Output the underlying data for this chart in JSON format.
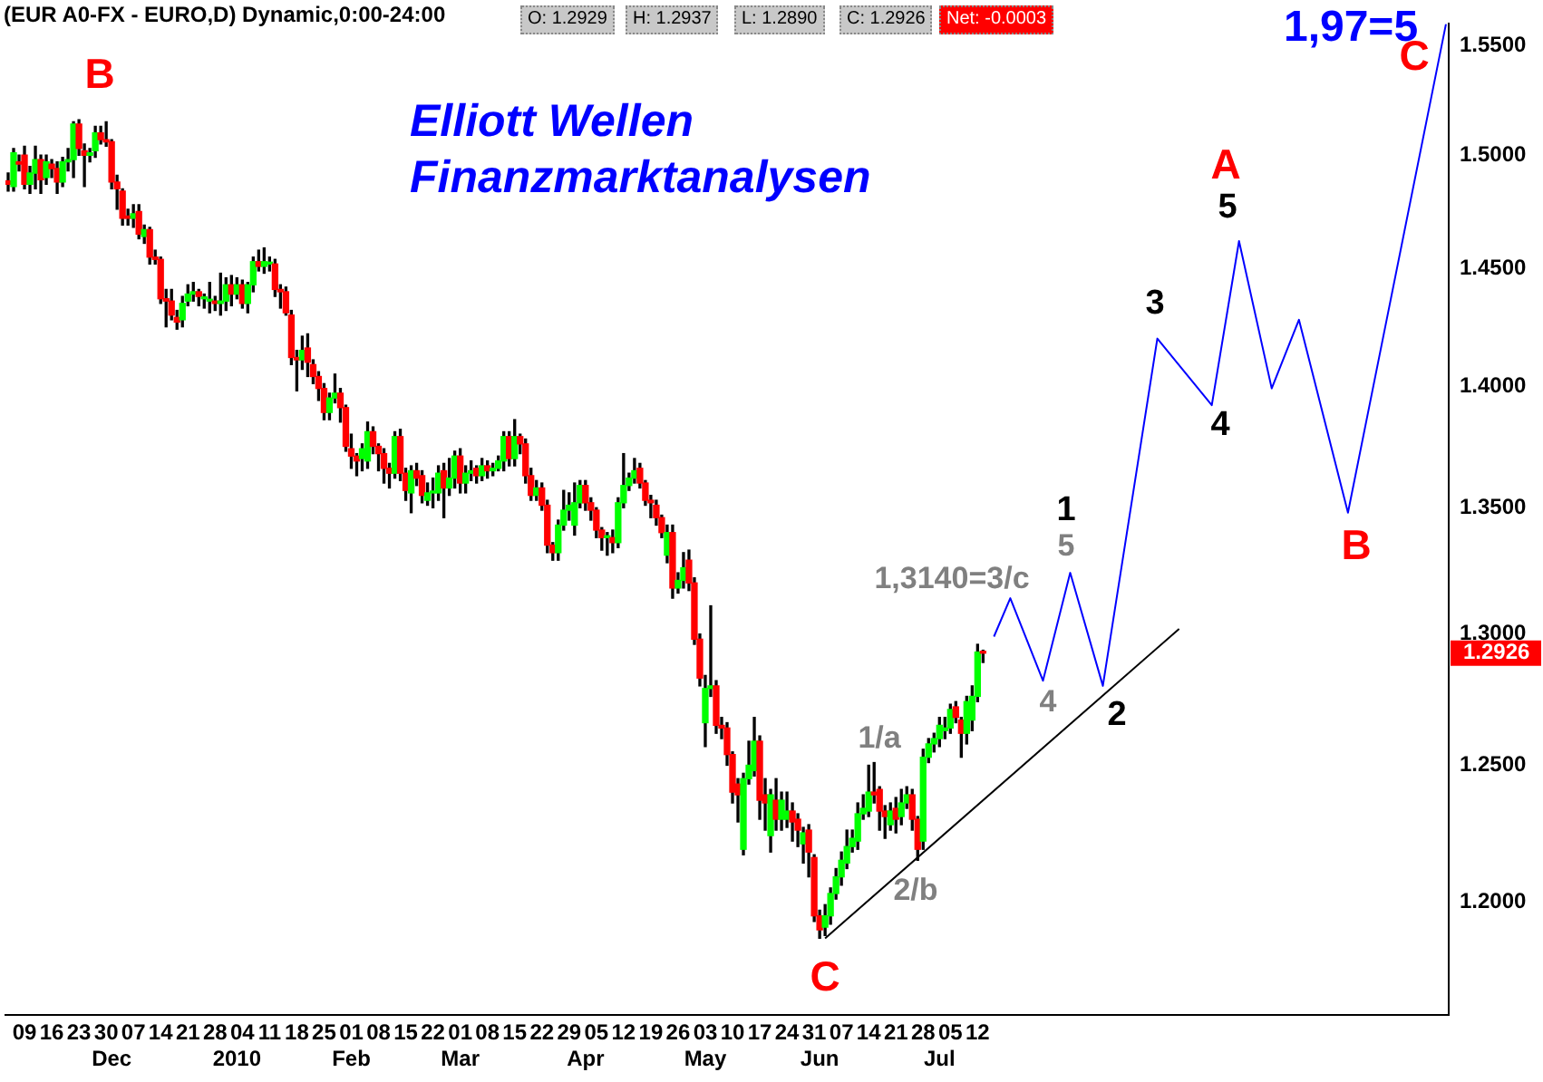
{
  "chart_data": {
    "type": "candlestick",
    "title": "(EUR A0-FX - EURO,D) Dynamic,0:00-24:00",
    "categories": [
      null,
      null,
      null,
      "09",
      null,
      null,
      null,
      null,
      "16",
      null,
      null,
      null,
      null,
      "23",
      null,
      null,
      null,
      null,
      "30",
      "\nDec",
      null,
      null,
      null,
      "07",
      null,
      null,
      null,
      null,
      "14",
      null,
      null,
      null,
      null,
      "21",
      null,
      null,
      null,
      null,
      "28",
      null,
      null,
      null,
      "\n2010",
      "04",
      null,
      null,
      null,
      null,
      "11",
      null,
      null,
      null,
      null,
      "18",
      null,
      null,
      null,
      null,
      "25",
      null,
      null,
      null,
      null,
      "01\nFeb",
      null,
      null,
      null,
      null,
      "08",
      null,
      null,
      null,
      null,
      "15",
      null,
      null,
      null,
      null,
      "22",
      null,
      null,
      null,
      null,
      "01\nMar",
      null,
      null,
      null,
      null,
      "08",
      null,
      null,
      null,
      null,
      "15",
      null,
      null,
      null,
      null,
      "22",
      null,
      null,
      null,
      null,
      "29",
      null,
      null,
      "\nApr",
      null,
      "05",
      null,
      null,
      null,
      null,
      "12",
      null,
      null,
      null,
      null,
      "19",
      null,
      null,
      null,
      null,
      "26",
      null,
      null,
      null,
      null,
      "03\nMay",
      null,
      null,
      null,
      null,
      "10",
      null,
      null,
      null,
      null,
      "17",
      null,
      null,
      null,
      null,
      "24",
      null,
      null,
      null,
      null,
      "31",
      "\nJun",
      null,
      null,
      null,
      "07",
      null,
      null,
      null,
      null,
      "14",
      null,
      null,
      null,
      null,
      "21",
      null,
      null,
      null,
      null,
      "28",
      null,
      null,
      "\nJul",
      null,
      "05",
      null,
      null,
      null,
      null,
      "12",
      null,
      null,
      null,
      null,
      null,
      null,
      null,
      null,
      null,
      null,
      null,
      null,
      null,
      null,
      null,
      null,
      null,
      null,
      null,
      null,
      null,
      null,
      null,
      null,
      null,
      null,
      null,
      null,
      null,
      null,
      null,
      null,
      null,
      null,
      null,
      null,
      null,
      null,
      null,
      null,
      null,
      null,
      null,
      null,
      null,
      null,
      null,
      null,
      null,
      null,
      null,
      null,
      null,
      null,
      null,
      null,
      null,
      null,
      null,
      null,
      null,
      null,
      null,
      null,
      null,
      null,
      null,
      null,
      null,
      null,
      null,
      null,
      null,
      null,
      null,
      null,
      null,
      null,
      null,
      null,
      null,
      null,
      null,
      null,
      null,
      null
    ],
    "ohlc": [
      [
        1.4885,
        1.492,
        1.484,
        1.487
      ],
      [
        1.486,
        1.503,
        1.484,
        1.501
      ],
      [
        1.497,
        1.5,
        1.493,
        1.496
      ],
      [
        1.5,
        1.504,
        1.485,
        1.487
      ],
      [
        1.487,
        1.495,
        1.483,
        1.492
      ],
      [
        1.492,
        1.504,
        1.485,
        1.498
      ],
      [
        1.498,
        1.5,
        1.483,
        1.489
      ],
      [
        1.49,
        1.5,
        1.487,
        1.497
      ],
      [
        1.496,
        1.498,
        1.49,
        1.494
      ],
      [
        1.494,
        1.497,
        1.483,
        1.488
      ],
      [
        1.488,
        1.499,
        1.486,
        1.497
      ],
      [
        1.497,
        1.503,
        1.493,
        1.498
      ],
      [
        1.498,
        1.515,
        1.49,
        1.514
      ],
      [
        1.514,
        1.516,
        1.5,
        1.503
      ],
      [
        1.502,
        1.505,
        1.486,
        1.5
      ],
      [
        1.5,
        1.503,
        1.497,
        1.501
      ],
      [
        1.502,
        1.513,
        1.499,
        1.51
      ],
      [
        1.51,
        1.513,
        1.505,
        1.507
      ],
      [
        1.507,
        1.515,
        1.504,
        1.506
      ],
      [
        1.506,
        1.507,
        1.485,
        1.488
      ],
      [
        1.488,
        1.491,
        1.476,
        1.485
      ],
      [
        1.484,
        1.485,
        1.469,
        1.472
      ],
      [
        1.473,
        1.476,
        1.469,
        1.472
      ],
      [
        1.472,
        1.478,
        1.468,
        1.474
      ],
      [
        1.475,
        1.478,
        1.463,
        1.465
      ],
      [
        1.464,
        1.469,
        1.461,
        1.467
      ],
      [
        1.467,
        1.468,
        1.452,
        1.455
      ],
      [
        1.455,
        1.458,
        1.452,
        1.454
      ],
      [
        1.454,
        1.455,
        1.435,
        1.437
      ],
      [
        1.437,
        1.441,
        1.425,
        1.436
      ],
      [
        1.436,
        1.441,
        1.428,
        1.43
      ],
      [
        1.429,
        1.432,
        1.424,
        1.427
      ],
      [
        1.428,
        1.438,
        1.425,
        1.435
      ],
      [
        1.436,
        1.443,
        1.434,
        1.439
      ],
      [
        1.439,
        1.444,
        1.436,
        1.44
      ],
      [
        1.44,
        1.441,
        1.434,
        1.438
      ],
      [
        1.437,
        1.439,
        1.433,
        1.437
      ],
      [
        1.436,
        1.444,
        1.431,
        1.436
      ],
      [
        1.436,
        1.438,
        1.432,
        1.435
      ],
      [
        1.435,
        1.448,
        1.43,
        1.436
      ],
      [
        1.436,
        1.446,
        1.432,
        1.443
      ],
      [
        1.443,
        1.447,
        1.434,
        1.439
      ],
      [
        1.439,
        1.446,
        1.437,
        1.443
      ],
      [
        1.443,
        1.445,
        1.433,
        1.435
      ],
      [
        1.435,
        1.444,
        1.431,
        1.443
      ],
      [
        1.443,
        1.455,
        1.44,
        1.453
      ],
      [
        1.453,
        1.458,
        1.449,
        1.451
      ],
      [
        1.451,
        1.459,
        1.448,
        1.453
      ],
      [
        1.452,
        1.455,
        1.449,
        1.452
      ],
      [
        1.452,
        1.454,
        1.438,
        1.441
      ],
      [
        1.441,
        1.443,
        1.433,
        1.44
      ],
      [
        1.44,
        1.442,
        1.43,
        1.431
      ],
      [
        1.43,
        1.432,
        1.409,
        1.412
      ],
      [
        1.412,
        1.415,
        1.398,
        1.411
      ],
      [
        1.411,
        1.421,
        1.407,
        1.415
      ],
      [
        1.416,
        1.422,
        1.404,
        1.41
      ],
      [
        1.409,
        1.411,
        1.401,
        1.404
      ],
      [
        1.404,
        1.406,
        1.394,
        1.399
      ],
      [
        1.399,
        1.401,
        1.386,
        1.389
      ],
      [
        1.389,
        1.397,
        1.386,
        1.395
      ],
      [
        1.395,
        1.405,
        1.393,
        1.397
      ],
      [
        1.397,
        1.399,
        1.385,
        1.391
      ],
      [
        1.391,
        1.392,
        1.373,
        1.375
      ],
      [
        1.374,
        1.38,
        1.366,
        1.371
      ],
      [
        1.371,
        1.372,
        1.363,
        1.369
      ],
      [
        1.37,
        1.376,
        1.365,
        1.374
      ],
      [
        1.369,
        1.385,
        1.366,
        1.381
      ],
      [
        1.381,
        1.383,
        1.372,
        1.375
      ],
      [
        1.375,
        1.376,
        1.365,
        1.372
      ],
      [
        1.372,
        1.374,
        1.36,
        1.366
      ],
      [
        1.366,
        1.368,
        1.358,
        1.364
      ],
      [
        1.364,
        1.381,
        1.362,
        1.379
      ],
      [
        1.379,
        1.382,
        1.361,
        1.364
      ],
      [
        1.364,
        1.366,
        1.353,
        1.357
      ],
      [
        1.356,
        1.367,
        1.348,
        1.365
      ],
      [
        1.365,
        1.368,
        1.359,
        1.362
      ],
      [
        1.363,
        1.365,
        1.352,
        1.355
      ],
      [
        1.353,
        1.36,
        1.351,
        1.356
      ],
      [
        1.356,
        1.362,
        1.35,
        1.356
      ],
      [
        1.356,
        1.367,
        1.353,
        1.364
      ],
      [
        1.365,
        1.368,
        1.346,
        1.358
      ],
      [
        1.358,
        1.37,
        1.355,
        1.362
      ],
      [
        1.362,
        1.373,
        1.358,
        1.371
      ],
      [
        1.371,
        1.374,
        1.356,
        1.36
      ],
      [
        1.36,
        1.367,
        1.356,
        1.364
      ],
      [
        1.364,
        1.369,
        1.361,
        1.365
      ],
      [
        1.366,
        1.367,
        1.36,
        1.363
      ],
      [
        1.363,
        1.37,
        1.361,
        1.367
      ],
      [
        1.367,
        1.369,
        1.362,
        1.365
      ],
      [
        1.365,
        1.368,
        1.363,
        1.366
      ],
      [
        1.366,
        1.371,
        1.365,
        1.369
      ],
      [
        1.369,
        1.381,
        1.365,
        1.379
      ],
      [
        1.379,
        1.381,
        1.367,
        1.37
      ],
      [
        1.37,
        1.386,
        1.367,
        1.379
      ],
      [
        1.379,
        1.38,
        1.372,
        1.376
      ],
      [
        1.376,
        1.378,
        1.36,
        1.363
      ],
      [
        1.363,
        1.366,
        1.353,
        1.355
      ],
      [
        1.355,
        1.361,
        1.353,
        1.358
      ],
      [
        1.358,
        1.36,
        1.349,
        1.351
      ],
      [
        1.351,
        1.353,
        1.332,
        1.335
      ],
      [
        1.335,
        1.336,
        1.329,
        1.332
      ],
      [
        1.332,
        1.345,
        1.329,
        1.343
      ],
      [
        1.343,
        1.357,
        1.341,
        1.349
      ],
      [
        1.349,
        1.356,
        1.345,
        1.351
      ],
      [
        1.343,
        1.36,
        1.339,
        1.352
      ],
      [
        1.352,
        1.361,
        1.35,
        1.359
      ],
      [
        1.359,
        1.361,
        1.349,
        1.352
      ],
      [
        1.352,
        1.354,
        1.345,
        1.349
      ],
      [
        1.349,
        1.35,
        1.338,
        1.341
      ],
      [
        1.341,
        1.342,
        1.333,
        1.338
      ],
      [
        1.338,
        1.34,
        1.331,
        1.338
      ],
      [
        1.338,
        1.341,
        1.332,
        1.336
      ],
      [
        1.336,
        1.354,
        1.334,
        1.352
      ],
      [
        1.352,
        1.372,
        1.35,
        1.359
      ],
      [
        1.359,
        1.364,
        1.357,
        1.362
      ],
      [
        1.362,
        1.37,
        1.36,
        1.365
      ],
      [
        1.366,
        1.368,
        1.358,
        1.36
      ],
      [
        1.36,
        1.361,
        1.351,
        1.353
      ],
      [
        1.353,
        1.355,
        1.346,
        1.352
      ],
      [
        1.351,
        1.353,
        1.343,
        1.346
      ],
      [
        1.346,
        1.347,
        1.338,
        1.34
      ],
      [
        1.331,
        1.343,
        1.328,
        1.34
      ],
      [
        1.34,
        1.343,
        1.314,
        1.318
      ],
      [
        1.318,
        1.324,
        1.316,
        1.321
      ],
      [
        1.321,
        1.332,
        1.318,
        1.326
      ],
      [
        1.329,
        1.333,
        1.317,
        1.32
      ],
      [
        1.32,
        1.322,
        1.296,
        1.298
      ],
      [
        1.298,
        1.3,
        1.28,
        1.283
      ],
      [
        1.266,
        1.284,
        1.257,
        1.279
      ],
      [
        1.279,
        1.311,
        1.276,
        1.28
      ],
      [
        1.28,
        1.282,
        1.262,
        1.265
      ],
      [
        1.265,
        1.268,
        1.26,
        1.264
      ],
      [
        1.264,
        1.266,
        1.25,
        1.254
      ],
      [
        1.254,
        1.255,
        1.236,
        1.24
      ],
      [
        1.243,
        1.245,
        1.229,
        1.239
      ],
      [
        1.219,
        1.247,
        1.217,
        1.245
      ],
      [
        1.245,
        1.259,
        1.243,
        1.25
      ],
      [
        1.248,
        1.268,
        1.246,
        1.259
      ],
      [
        1.259,
        1.261,
        1.23,
        1.237
      ],
      [
        1.239,
        1.245,
        1.226,
        1.236
      ],
      [
        1.224,
        1.241,
        1.218,
        1.239
      ],
      [
        1.237,
        1.245,
        1.226,
        1.23
      ],
      [
        1.23,
        1.24,
        1.226,
        1.237
      ],
      [
        1.23,
        1.24,
        1.227,
        1.233
      ],
      [
        1.233,
        1.236,
        1.222,
        1.229
      ],
      [
        1.23,
        1.232,
        1.22,
        1.226
      ],
      [
        1.221,
        1.227,
        1.214,
        1.225
      ],
      [
        1.226,
        1.228,
        1.209,
        1.218
      ],
      [
        1.216,
        1.217,
        1.193,
        1.195
      ],
      [
        1.195,
        1.197,
        1.187,
        1.19
      ],
      [
        1.191,
        1.199,
        1.188,
        1.195
      ],
      [
        1.195,
        1.205,
        1.192,
        1.203
      ],
      [
        1.203,
        1.212,
        1.201,
        1.209
      ],
      [
        1.209,
        1.218,
        1.206,
        1.215
      ],
      [
        1.214,
        1.226,
        1.212,
        1.22
      ],
      [
        1.22,
        1.226,
        1.218,
        1.223
      ],
      [
        1.222,
        1.236,
        1.219,
        1.232
      ],
      [
        1.232,
        1.239,
        1.23,
        1.234
      ],
      [
        1.233,
        1.25,
        1.231,
        1.24
      ],
      [
        1.24,
        1.251,
        1.236,
        1.239
      ],
      [
        1.241,
        1.242,
        1.226,
        1.233
      ],
      [
        1.233,
        1.235,
        1.223,
        1.231
      ],
      [
        1.228,
        1.236,
        1.226,
        1.233
      ],
      [
        1.234,
        1.238,
        1.225,
        1.23
      ],
      [
        1.231,
        1.241,
        1.228,
        1.236
      ],
      [
        1.236,
        1.242,
        1.234,
        1.239
      ],
      [
        1.239,
        1.241,
        1.226,
        1.23
      ],
      [
        1.23,
        1.231,
        1.215,
        1.219
      ],
      [
        1.222,
        1.256,
        1.219,
        1.253
      ],
      [
        1.253,
        1.26,
        1.251,
        1.258
      ],
      [
        1.258,
        1.262,
        1.255,
        1.26
      ],
      [
        1.26,
        1.268,
        1.257,
        1.265
      ],
      [
        1.263,
        1.268,
        1.26,
        1.264
      ],
      [
        1.264,
        1.273,
        1.262,
        1.271
      ],
      [
        1.272,
        1.274,
        1.266,
        1.268
      ],
      [
        1.267,
        1.268,
        1.253,
        1.262
      ],
      [
        1.262,
        1.276,
        1.258,
        1.274
      ],
      [
        1.267,
        1.28,
        1.263,
        1.276
      ],
      [
        1.276,
        1.296,
        1.274,
        1.293
      ],
      [
        1.2929,
        1.2937,
        1.289,
        1.2926
      ],
      null,
      null,
      null,
      null,
      null,
      null,
      null,
      null,
      null,
      null,
      null,
      null,
      null,
      null,
      null,
      null,
      null,
      null,
      null,
      null,
      null,
      null,
      null,
      null,
      null,
      null,
      null,
      null,
      null,
      null,
      null,
      null,
      null,
      null,
      null,
      null,
      null,
      null,
      null,
      null,
      null,
      null,
      null,
      null,
      null,
      null,
      null,
      null,
      null,
      null,
      null,
      null,
      null,
      null,
      null,
      null,
      null,
      null,
      null,
      null,
      null,
      null,
      null,
      null,
      null,
      null,
      null,
      null,
      null,
      null,
      null,
      null,
      null,
      null,
      null,
      null,
      null,
      null,
      null,
      null,
      null,
      null,
      null,
      null,
      null
    ],
    "series": [
      {
        "type": "line",
        "color": "#0000ff",
        "values": [
          null,
          null,
          null,
          null,
          null,
          null,
          null,
          null,
          null,
          null,
          null,
          null,
          null,
          null,
          null,
          null,
          null,
          null,
          null,
          null,
          null,
          null,
          null,
          null,
          null,
          null,
          null,
          null,
          null,
          null,
          null,
          null,
          null,
          null,
          null,
          null,
          null,
          null,
          null,
          null,
          null,
          null,
          null,
          null,
          null,
          null,
          null,
          null,
          null,
          null,
          null,
          null,
          null,
          null,
          null,
          null,
          null,
          null,
          null,
          null,
          null,
          null,
          null,
          null,
          null,
          null,
          null,
          null,
          null,
          null,
          null,
          null,
          null,
          null,
          null,
          null,
          null,
          null,
          null,
          null,
          null,
          null,
          null,
          null,
          null,
          null,
          null,
          null,
          null,
          null,
          null,
          null,
          null,
          null,
          null,
          null,
          null,
          null,
          null,
          null,
          null,
          null,
          null,
          null,
          null,
          null,
          null,
          null,
          null,
          null,
          null,
          null,
          null,
          null,
          null,
          null,
          null,
          null,
          null,
          null,
          null,
          null,
          null,
          null,
          null,
          null,
          null,
          null,
          null,
          null,
          null,
          null,
          null,
          null,
          null,
          null,
          null,
          null,
          null,
          null,
          null,
          null,
          null,
          null,
          null,
          null,
          null,
          null,
          null,
          null,
          null,
          null,
          null,
          null,
          null,
          null,
          null,
          null,
          null,
          null,
          null,
          null,
          null,
          null,
          null,
          null,
          null,
          null,
          null,
          null,
          null,
          null,
          null,
          null,
          null,
          null,
          null,
          null,
          null,
          null,
          null,
          1.299,
          null,
          null,
          1.314,
          null,
          null,
          null,
          null,
          null,
          1.282,
          null,
          null,
          null,
          null,
          1.324,
          null,
          null,
          null,
          null,
          null,
          1.28,
          null,
          null,
          null,
          null,
          null,
          null,
          null,
          null,
          null,
          1.42,
          null,
          null,
          null,
          null,
          null,
          null,
          null,
          null,
          null,
          1.392,
          null,
          null,
          null,
          null,
          1.462,
          null,
          null,
          null,
          null,
          null,
          1.399,
          null,
          null,
          null,
          null,
          1.428,
          null,
          null,
          null,
          null,
          null,
          null,
          null,
          null,
          1.348,
          null,
          null,
          null,
          null,
          null,
          null,
          null,
          null,
          null,
          null,
          null,
          null,
          null,
          null,
          null,
          null,
          null,
          1.56
        ]
      },
      {
        "type": "line",
        "color": "#000000",
        "values": [
          null,
          null,
          null,
          null,
          null,
          null,
          null,
          null,
          null,
          null,
          null,
          null,
          null,
          null,
          null,
          null,
          null,
          null,
          null,
          null,
          null,
          null,
          null,
          null,
          null,
          null,
          null,
          null,
          null,
          null,
          null,
          null,
          null,
          null,
          null,
          null,
          null,
          null,
          null,
          null,
          null,
          null,
          null,
          null,
          null,
          null,
          null,
          null,
          null,
          null,
          null,
          null,
          null,
          null,
          null,
          null,
          null,
          null,
          null,
          null,
          null,
          null,
          null,
          null,
          null,
          null,
          null,
          null,
          null,
          null,
          null,
          null,
          null,
          null,
          null,
          null,
          null,
          null,
          null,
          null,
          null,
          null,
          null,
          null,
          null,
          null,
          null,
          null,
          null,
          null,
          null,
          null,
          null,
          null,
          null,
          null,
          null,
          null,
          null,
          null,
          null,
          null,
          null,
          null,
          null,
          null,
          null,
          null,
          null,
          null,
          null,
          null,
          null,
          null,
          null,
          null,
          null,
          null,
          null,
          null,
          null,
          null,
          null,
          null,
          null,
          null,
          null,
          null,
          null,
          null,
          null,
          null,
          null,
          null,
          null,
          null,
          null,
          null,
          null,
          null,
          null,
          null,
          null,
          null,
          null,
          null,
          null,
          null,
          null,
          null,
          1.187,
          null,
          null,
          null,
          null,
          null,
          null,
          null,
          null,
          null,
          null,
          null,
          null,
          null,
          null,
          null,
          null,
          null,
          null,
          null,
          null,
          null,
          null,
          null,
          null,
          null,
          null,
          null,
          null,
          null,
          null,
          null,
          null,
          null,
          null,
          null,
          null,
          null,
          null,
          null,
          null,
          null,
          null,
          null,
          null,
          null,
          null,
          null,
          null,
          null,
          null,
          null,
          null,
          null,
          null,
          null,
          null,
          null,
          null,
          null,
          null,
          null,
          null,
          null,
          null,
          1.302,
          null,
          null,
          null,
          null,
          null,
          null,
          null,
          null,
          null,
          null,
          null,
          null,
          null,
          null,
          null,
          null,
          null,
          null,
          null,
          null,
          null,
          null,
          null,
          null,
          null,
          null,
          null,
          null,
          null,
          null,
          null,
          null,
          null,
          null,
          null,
          null,
          null,
          null,
          null,
          null,
          null,
          null,
          null,
          null,
          null,
          null,
          null,
          null,
          null
        ]
      }
    ],
    "log": true,
    "ylim": [
      1.16,
      1.56
    ],
    "yticks": [
      {
        "value": 1.2,
        "label": "1.2000"
      },
      {
        "value": 1.25,
        "label": "1.2500"
      },
      {
        "value": 1.3,
        "label": "1.3000"
      },
      {
        "value": 1.35,
        "label": "1.3500"
      },
      {
        "value": 1.4,
        "label": "1.4000"
      },
      {
        "value": 1.45,
        "label": "1.4500"
      },
      {
        "value": 1.5,
        "label": "1.5000"
      },
      {
        "value": 1.55,
        "label": "1.5500"
      }
    ],
    "annotations": [
      "O: 1.2929",
      "H: 1.2937",
      "L: 1.2890",
      "C: 1.2926",
      "Net: -0.0003",
      "Elliott Wellen",
      "Finanzmarktanalysen",
      "B",
      "C",
      "1/a",
      "2/b",
      "1,3140=3/c",
      "4",
      "5",
      "1",
      "2",
      "3",
      "4",
      "5",
      "A",
      "B",
      "C",
      "1,97=5",
      "1.2926"
    ]
  }
}
